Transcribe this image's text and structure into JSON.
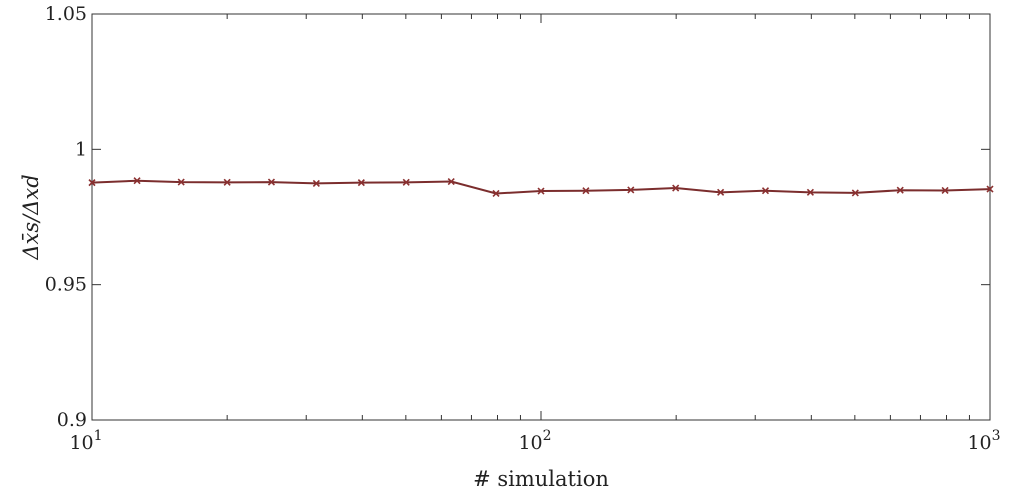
{
  "chart_data": {
    "type": "line",
    "x_scale": "log",
    "xlim": [
      10,
      1000
    ],
    "ylim": [
      0.9,
      1.05
    ],
    "xlabel": "# simulation",
    "ylabel": "Δx̄s/Δxd",
    "x_ticks": [
      {
        "value": 10,
        "base": "10",
        "exp": "1"
      },
      {
        "value": 100,
        "base": "10",
        "exp": "2"
      },
      {
        "value": 1000,
        "base": "10",
        "exp": "3"
      }
    ],
    "y_ticks": [
      {
        "value": 0.9,
        "label": "0.9"
      },
      {
        "value": 0.95,
        "label": "0.95"
      },
      {
        "value": 1.0,
        "label": "1"
      },
      {
        "value": 1.05,
        "label": "1.05"
      }
    ],
    "grid": false,
    "marker": "x",
    "colors": {
      "line": "#7b2d2d",
      "marker": "#8b3030",
      "axis": "#333333"
    },
    "series": [
      {
        "x": [
          10,
          12.6,
          15.8,
          20,
          25.1,
          31.6,
          39.8,
          50.1,
          63.1,
          79.4,
          100,
          125.9,
          158.5,
          199.5,
          251.2,
          316.2,
          398.1,
          501.2,
          631,
          794.3,
          1000
        ],
        "y": [
          0.9877,
          0.9884,
          0.9879,
          0.9878,
          0.9879,
          0.9874,
          0.9877,
          0.9878,
          0.9881,
          0.9837,
          0.9846,
          0.9847,
          0.985,
          0.9857,
          0.9841,
          0.9847,
          0.9841,
          0.9839,
          0.9849,
          0.9848,
          0.9853
        ]
      }
    ]
  }
}
